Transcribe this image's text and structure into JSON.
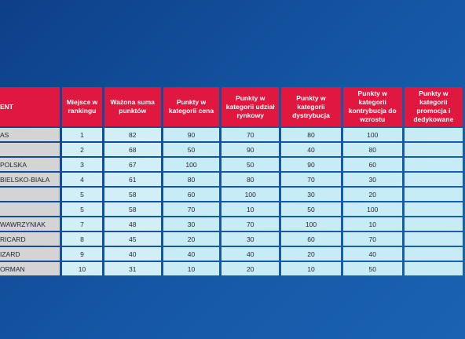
{
  "colors": {
    "background": "#1557a6",
    "header": "#e0173e",
    "name_cell": "#d4d4d4",
    "value_cell": "#c8ecf5"
  },
  "table": {
    "headers": [
      "ENT",
      "Miejsce w rankingu",
      "Ważona suma punktów",
      "Punkty w kategorii cena",
      "Punkty w kategorii udział rynkowy",
      "Punkty w kategorii dystrybucja",
      "Punkty w kategorii kontrybucja do wzrostu",
      "Punkty w kategorii promocja i dedykowane"
    ],
    "rows": [
      {
        "name": "AS",
        "cells": [
          "1",
          "82",
          "90",
          "70",
          "80",
          "100",
          ""
        ]
      },
      {
        "name": "",
        "cells": [
          "2",
          "68",
          "50",
          "90",
          "40",
          "80",
          ""
        ]
      },
      {
        "name": "POLSKA",
        "cells": [
          "3",
          "67",
          "100",
          "50",
          "90",
          "60",
          ""
        ]
      },
      {
        "name": "BIELSKO-BIAŁA",
        "cells": [
          "4",
          "61",
          "80",
          "80",
          "70",
          "30",
          ""
        ]
      },
      {
        "name": "",
        "cells": [
          "5",
          "58",
          "60",
          "100",
          "30",
          "20",
          ""
        ]
      },
      {
        "name": "",
        "cells": [
          "5",
          "58",
          "70",
          "10",
          "50",
          "100",
          ""
        ]
      },
      {
        "name": "WAWRZYNIAK",
        "cells": [
          "7",
          "48",
          "30",
          "70",
          "100",
          "10",
          ""
        ]
      },
      {
        "name": "RICARD",
        "cells": [
          "8",
          "45",
          "20",
          "30",
          "60",
          "70",
          ""
        ]
      },
      {
        "name": "IZARD",
        "cells": [
          "9",
          "40",
          "40",
          "40",
          "20",
          "40",
          ""
        ]
      },
      {
        "name": "ORMAN",
        "cells": [
          "10",
          "31",
          "10",
          "20",
          "10",
          "50",
          ""
        ]
      }
    ]
  }
}
